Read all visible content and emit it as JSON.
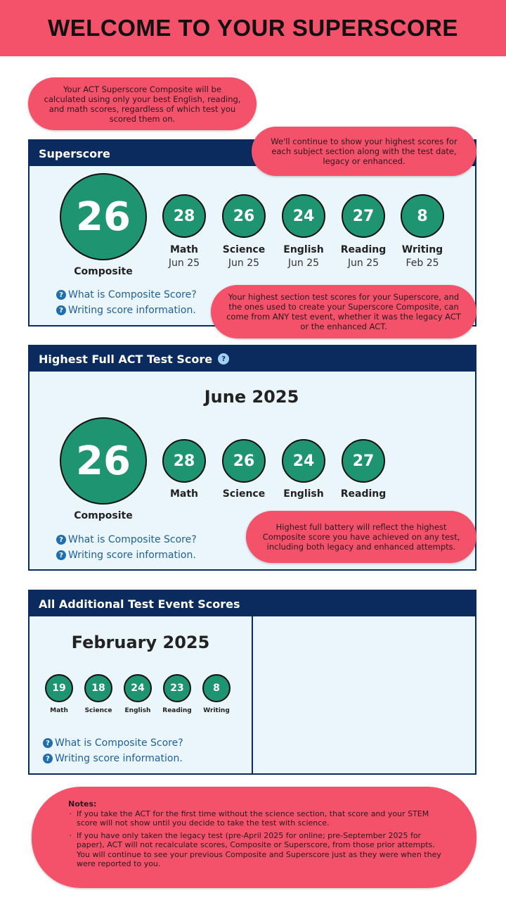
{
  "banner": {
    "title": "WELCOME TO YOUR SUPERSCORE"
  },
  "callouts": {
    "c1": "Your ACT Superscore Composite will be calculated using only your best English, reading, and math scores, regardless of which test you scored them on.",
    "c2": "We'll continue to show your highest scores for each subject section along with the test date, legacy or enhanced.",
    "c3": "Your highest section test scores for your Superscore, and the ones used to create your Superscore Composite, can come from ANY test event, whether it was the legacy ACT or the enhanced ACT.",
    "c4": "Highest full battery will reflect the highest Composite score you have achieved on any test, including both legacy and enhanced attempts."
  },
  "superscore": {
    "title": "Superscore",
    "composite": {
      "score": "26",
      "label": "Composite"
    },
    "sections": [
      {
        "score": "28",
        "label": "Math",
        "date": "Jun 25"
      },
      {
        "score": "26",
        "label": "Science",
        "date": "Jun 25"
      },
      {
        "score": "24",
        "label": "English",
        "date": "Jun 25"
      },
      {
        "score": "27",
        "label": "Reading",
        "date": "Jun 25"
      },
      {
        "score": "8",
        "label": "Writing",
        "date": "Feb 25"
      }
    ]
  },
  "highest": {
    "title": "Highest Full ACT Test Score",
    "month": "June 2025",
    "composite": {
      "score": "26",
      "label": "Composite"
    },
    "sections": [
      {
        "score": "28",
        "label": "Math"
      },
      {
        "score": "26",
        "label": "Science"
      },
      {
        "score": "24",
        "label": "English"
      },
      {
        "score": "27",
        "label": "Reading"
      }
    ]
  },
  "additional": {
    "title": "All Additional Test Event Scores",
    "month": "February 2025",
    "sections": [
      {
        "score": "19",
        "label": "Math"
      },
      {
        "score": "18",
        "label": "Science"
      },
      {
        "score": "24",
        "label": "English"
      },
      {
        "score": "23",
        "label": "Reading"
      },
      {
        "score": "8",
        "label": "Writing"
      }
    ]
  },
  "links": {
    "composite": "What is Composite Score?",
    "writing": "Writing score information.",
    "help_glyph": "?"
  },
  "notes": {
    "title": "Notes:",
    "items": [
      "If you take the ACT for the first time without the science section, that score and your STEM score will not show until you decide to take the test with science.",
      "If you have only taken the legacy test (pre-April 2025 for online; pre-September 2025 for paper), ACT will not recalculate scores, Composite or Superscore, from those prior attempts. You will continue to see your previous Composite and Superscore just as they were when they were reported to you."
    ]
  },
  "colors": {
    "pink": "#f4516a",
    "navy": "#0b2b5e",
    "green": "#1f9470",
    "panel": "#eaf6fc",
    "link": "#1f5f9e"
  }
}
